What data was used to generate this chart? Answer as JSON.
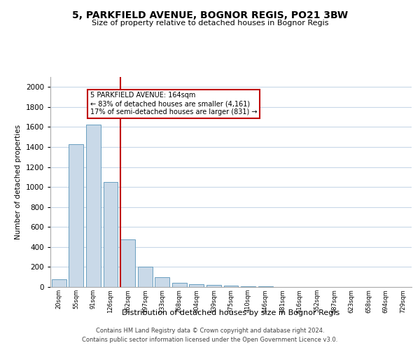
{
  "title_line1": "5, PARKFIELD AVENUE, BOGNOR REGIS, PO21 3BW",
  "title_line2": "Size of property relative to detached houses in Bognor Regis",
  "xlabel": "Distribution of detached houses by size in Bognor Regis",
  "ylabel": "Number of detached properties",
  "bar_labels": [
    "20sqm",
    "55sqm",
    "91sqm",
    "126sqm",
    "162sqm",
    "197sqm",
    "233sqm",
    "268sqm",
    "304sqm",
    "339sqm",
    "375sqm",
    "410sqm",
    "446sqm",
    "481sqm",
    "516sqm",
    "552sqm",
    "587sqm",
    "623sqm",
    "658sqm",
    "694sqm",
    "729sqm"
  ],
  "bar_values": [
    75,
    1425,
    1625,
    1050,
    475,
    200,
    100,
    40,
    25,
    20,
    15,
    10,
    5,
    3,
    2,
    2,
    1,
    1,
    1,
    1,
    1
  ],
  "bar_color": "#c9d9e8",
  "bar_edge_color": "#6a9fc0",
  "highlight_index": 4,
  "highlight_color": "#c00000",
  "ylim": [
    0,
    2100
  ],
  "yticks": [
    0,
    200,
    400,
    600,
    800,
    1000,
    1200,
    1400,
    1600,
    1800,
    2000
  ],
  "annotation_title": "5 PARKFIELD AVENUE: 164sqm",
  "annotation_line2": "← 83% of detached houses are smaller (4,161)",
  "annotation_line3": "17% of semi-detached houses are larger (831) →",
  "annotation_box_color": "#c00000",
  "footer_line1": "Contains HM Land Registry data © Crown copyright and database right 2024.",
  "footer_line2": "Contains public sector information licensed under the Open Government Licence v3.0.",
  "bg_color": "#ffffff",
  "grid_color": "#c8d8e8"
}
